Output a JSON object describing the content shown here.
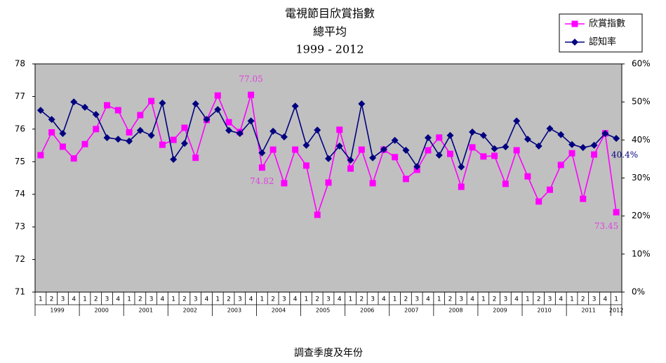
{
  "chart_data": {
    "type": "line",
    "title": "電視節目欣賞指數",
    "subtitle": [
      "總平均",
      "1999  -  2012"
    ],
    "x_label": "調查季度及年份",
    "categories": [
      "1",
      "2",
      "3",
      "4",
      "1",
      "2",
      "3",
      "4",
      "1",
      "2",
      "3",
      "4",
      "1",
      "2",
      "3",
      "4",
      "1",
      "2",
      "3",
      "4",
      "1",
      "2",
      "3",
      "4",
      "1",
      "2",
      "3",
      "4",
      "1",
      "2",
      "3",
      "4",
      "1",
      "2",
      "3",
      "4",
      "1",
      "2",
      "3",
      "4",
      "1",
      "2",
      "3",
      "4",
      "1",
      "2",
      "3",
      "4",
      "1",
      "2",
      "3",
      "4",
      "1"
    ],
    "years": [
      "1999",
      "2000",
      "2001",
      "2002",
      "2003",
      "2004",
      "2005",
      "2006",
      "2007",
      "2008",
      "2009",
      "2010",
      "2011",
      "2012"
    ],
    "series": [
      {
        "name": "欣賞指數",
        "color": "#ff00ff",
        "marker": "square",
        "values": [
          75.2,
          75.9,
          75.46,
          75.1,
          75.54,
          76.0,
          76.73,
          76.58,
          75.9,
          76.43,
          76.86,
          75.52,
          75.67,
          76.04,
          75.12,
          76.28,
          77.03,
          76.21,
          75.91,
          77.05,
          74.82,
          75.37,
          74.34,
          75.37,
          74.88,
          73.37,
          74.36,
          75.98,
          74.79,
          75.37,
          74.34,
          75.37,
          75.14,
          74.47,
          74.75,
          75.35,
          75.74,
          75.24,
          74.23,
          75.44,
          75.16,
          75.18,
          74.32,
          75.35,
          74.55,
          73.78,
          74.14,
          74.9,
          75.26,
          73.86,
          75.22,
          75.87,
          73.45
        ],
        "value_labels": [
          null,
          null,
          null,
          null,
          null,
          null,
          null,
          null,
          null,
          null,
          null,
          null,
          null,
          null,
          null,
          null,
          null,
          null,
          null,
          "77.05",
          "74.82",
          null,
          null,
          null,
          null,
          null,
          null,
          null,
          null,
          null,
          null,
          null,
          null,
          null,
          null,
          null,
          null,
          null,
          null,
          null,
          null,
          null,
          null,
          null,
          null,
          null,
          null,
          null,
          null,
          null,
          null,
          null,
          "73.45"
        ]
      },
      {
        "name": "認知率",
        "color": "#000080",
        "marker": "diamond",
        "axis": "y2",
        "values": [
          47.8,
          45.4,
          41.7,
          50.0,
          48.6,
          46.7,
          40.6,
          40.2,
          39.7,
          42.5,
          41.2,
          49.7,
          34.9,
          39.1,
          49.5,
          45.4,
          48.0,
          42.5,
          41.7,
          45.0,
          36.6,
          42.3,
          40.8,
          48.9,
          38.6,
          42.6,
          35.1,
          38.4,
          34.7,
          49.5,
          35.3,
          37.5,
          39.9,
          37.3,
          33.0,
          40.6,
          36.0,
          41.2,
          32.9,
          42.1,
          41.2,
          37.7,
          38.2,
          45.0,
          40.2,
          38.4,
          43.0,
          41.4,
          38.8,
          38.0,
          38.6,
          41.7,
          40.4
        ],
        "value_labels": [
          null,
          null,
          null,
          null,
          null,
          null,
          null,
          null,
          null,
          null,
          null,
          null,
          null,
          null,
          null,
          null,
          null,
          null,
          null,
          null,
          null,
          null,
          null,
          null,
          null,
          null,
          null,
          null,
          null,
          null,
          null,
          null,
          null,
          null,
          null,
          null,
          null,
          null,
          null,
          null,
          null,
          null,
          null,
          null,
          null,
          null,
          null,
          null,
          null,
          null,
          null,
          null,
          "40.4%"
        ]
      }
    ],
    "ylim": [
      71,
      78
    ],
    "yticks": [
      71,
      72,
      73,
      74,
      75,
      76,
      77,
      78
    ],
    "y2lim": [
      0,
      60
    ],
    "y2ticks": [
      {
        "value": 0,
        "label": "0%"
      },
      {
        "value": 10,
        "label": "10%"
      },
      {
        "value": 20,
        "label": "20%"
      },
      {
        "value": 30,
        "label": "30%"
      },
      {
        "value": 40,
        "label": "40%"
      },
      {
        "value": 50,
        "label": "50%"
      },
      {
        "value": 60,
        "label": "60%"
      }
    ],
    "legend": "upper-right",
    "plot_background": "#c0c0c0"
  }
}
